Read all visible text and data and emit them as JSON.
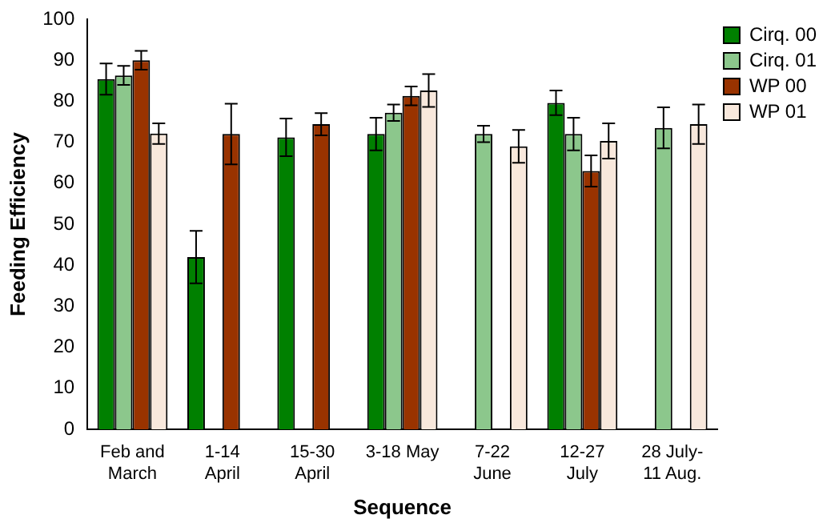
{
  "chart_data": {
    "type": "bar",
    "xlabel": "Sequence",
    "ylabel": "Feeding Efficiency",
    "categories": [
      "Feb and\nMarch",
      "1-14\nApril",
      "15-30\nApril",
      "3-18 May",
      "7-22\nJune",
      "12-27\nJuly",
      "28 July-\n11 Aug."
    ],
    "series": [
      {
        "name": "Cirq. 00",
        "color": "#008000",
        "values": [
          85.4,
          42,
          71.2,
          72,
          null,
          79.6,
          null
        ],
        "errors": [
          3.8,
          6.4,
          4.6,
          4,
          null,
          3,
          null
        ]
      },
      {
        "name": "Cirq. 01",
        "color": "#8cc78c",
        "values": [
          86.3,
          null,
          null,
          77.2,
          72,
          72,
          73.5
        ],
        "errors": [
          2.3,
          null,
          null,
          2,
          2,
          4,
          5
        ]
      },
      {
        "name": "WP 00",
        "color": "#993300",
        "values": [
          90,
          72,
          74.4,
          81.3,
          null,
          63,
          null
        ],
        "errors": [
          2.3,
          7.4,
          2.7,
          2.3,
          null,
          3.8,
          null
        ]
      },
      {
        "name": "WP 01",
        "color": "#f8e8dc",
        "values": [
          72.1,
          null,
          null,
          82.6,
          69,
          70.3,
          74.4
        ],
        "errors": [
          2.5,
          null,
          null,
          4,
          4,
          4.3,
          4.8
        ]
      }
    ],
    "ylim": [
      0,
      100
    ],
    "yticks": [
      0,
      10,
      20,
      30,
      40,
      50,
      60,
      70,
      80,
      90,
      100
    ],
    "grid": false,
    "legend": "top right"
  }
}
